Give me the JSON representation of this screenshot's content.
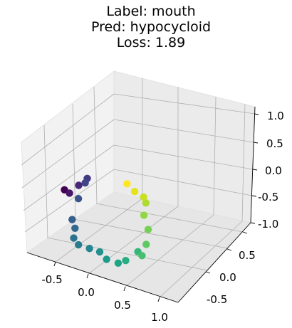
{
  "title": {
    "line1": "Label: mouth",
    "line2": "Pred: hypocycloid",
    "line3": "Loss: 1.89"
  },
  "chart_data": {
    "type": "scatter",
    "projection": "3d",
    "colormap": "viridis",
    "grid": true,
    "xlim": [
      -0.8,
      1.1
    ],
    "ylim": [
      -0.8,
      0.9
    ],
    "zlim": [
      -1.0,
      1.0
    ],
    "x_ticks": [
      "-0.5",
      "0.0",
      "0.5",
      "1.0"
    ],
    "y_ticks": [
      "-0.5",
      "0.0",
      "0.5"
    ],
    "z_ticks": [
      "-1.0",
      "-0.5",
      "0.0",
      "0.5",
      "1.0"
    ],
    "points": [
      {
        "x": -0.59,
        "y": 0.13,
        "z": 0.1,
        "color": "#440154"
      },
      {
        "x": -0.47,
        "y": 0.05,
        "z": 0.15,
        "color": "#481668"
      },
      {
        "x": -0.37,
        "y": 0.11,
        "z": 0.3,
        "color": "#482878"
      },
      {
        "x": -0.24,
        "y": 0.1,
        "z": 0.5,
        "color": "#443983"
      },
      {
        "x": -0.27,
        "y": 0.1,
        "z": 0.4,
        "color": "#404688"
      },
      {
        "x": -0.34,
        "y": 0.05,
        "z": 0.1,
        "color": "#3b528b"
      },
      {
        "x": -0.46,
        "y": 0.1,
        "z": -0.4,
        "color": "#355f8d"
      },
      {
        "x": -0.39,
        "y": 0.05,
        "z": -0.5,
        "color": "#31688e"
      },
      {
        "x": -0.38,
        "y": 0.0,
        "z": -0.65,
        "color": "#2c728e"
      },
      {
        "x": -0.31,
        "y": 0.0,
        "z": -0.75,
        "color": "#287c8e"
      },
      {
        "x": -0.15,
        "y": 0.0,
        "z": -0.75,
        "color": "#24868e"
      },
      {
        "x": 0.0,
        "y": 0.0,
        "z": -0.75,
        "color": "#21918c"
      },
      {
        "x": 0.1,
        "y": 0.0,
        "z": -0.85,
        "color": "#1f9a8a"
      },
      {
        "x": 0.27,
        "y": 0.0,
        "z": -0.85,
        "color": "#20a486"
      },
      {
        "x": 0.38,
        "y": 0.0,
        "z": -0.75,
        "color": "#27ad81"
      },
      {
        "x": 0.53,
        "y": 0.05,
        "z": -0.55,
        "color": "#35b779"
      },
      {
        "x": 0.59,
        "y": 0.05,
        "z": -0.6,
        "color": "#46c06f"
      },
      {
        "x": 0.68,
        "y": 0.0,
        "z": -0.3,
        "color": "#5ec962"
      },
      {
        "x": 0.68,
        "y": 0.05,
        "z": -0.05,
        "color": "#75d054"
      },
      {
        "x": 0.59,
        "y": 0.1,
        "z": 0.15,
        "color": "#8fd744"
      },
      {
        "x": 0.56,
        "y": 0.2,
        "z": 0.3,
        "color": "#addc30"
      },
      {
        "x": 0.47,
        "y": 0.3,
        "z": 0.3,
        "color": "#c8e020"
      },
      {
        "x": 0.34,
        "y": 0.3,
        "z": 0.35,
        "color": "#e5e419"
      },
      {
        "x": 0.2,
        "y": 0.35,
        "z": 0.4,
        "color": "#fde725"
      }
    ]
  }
}
